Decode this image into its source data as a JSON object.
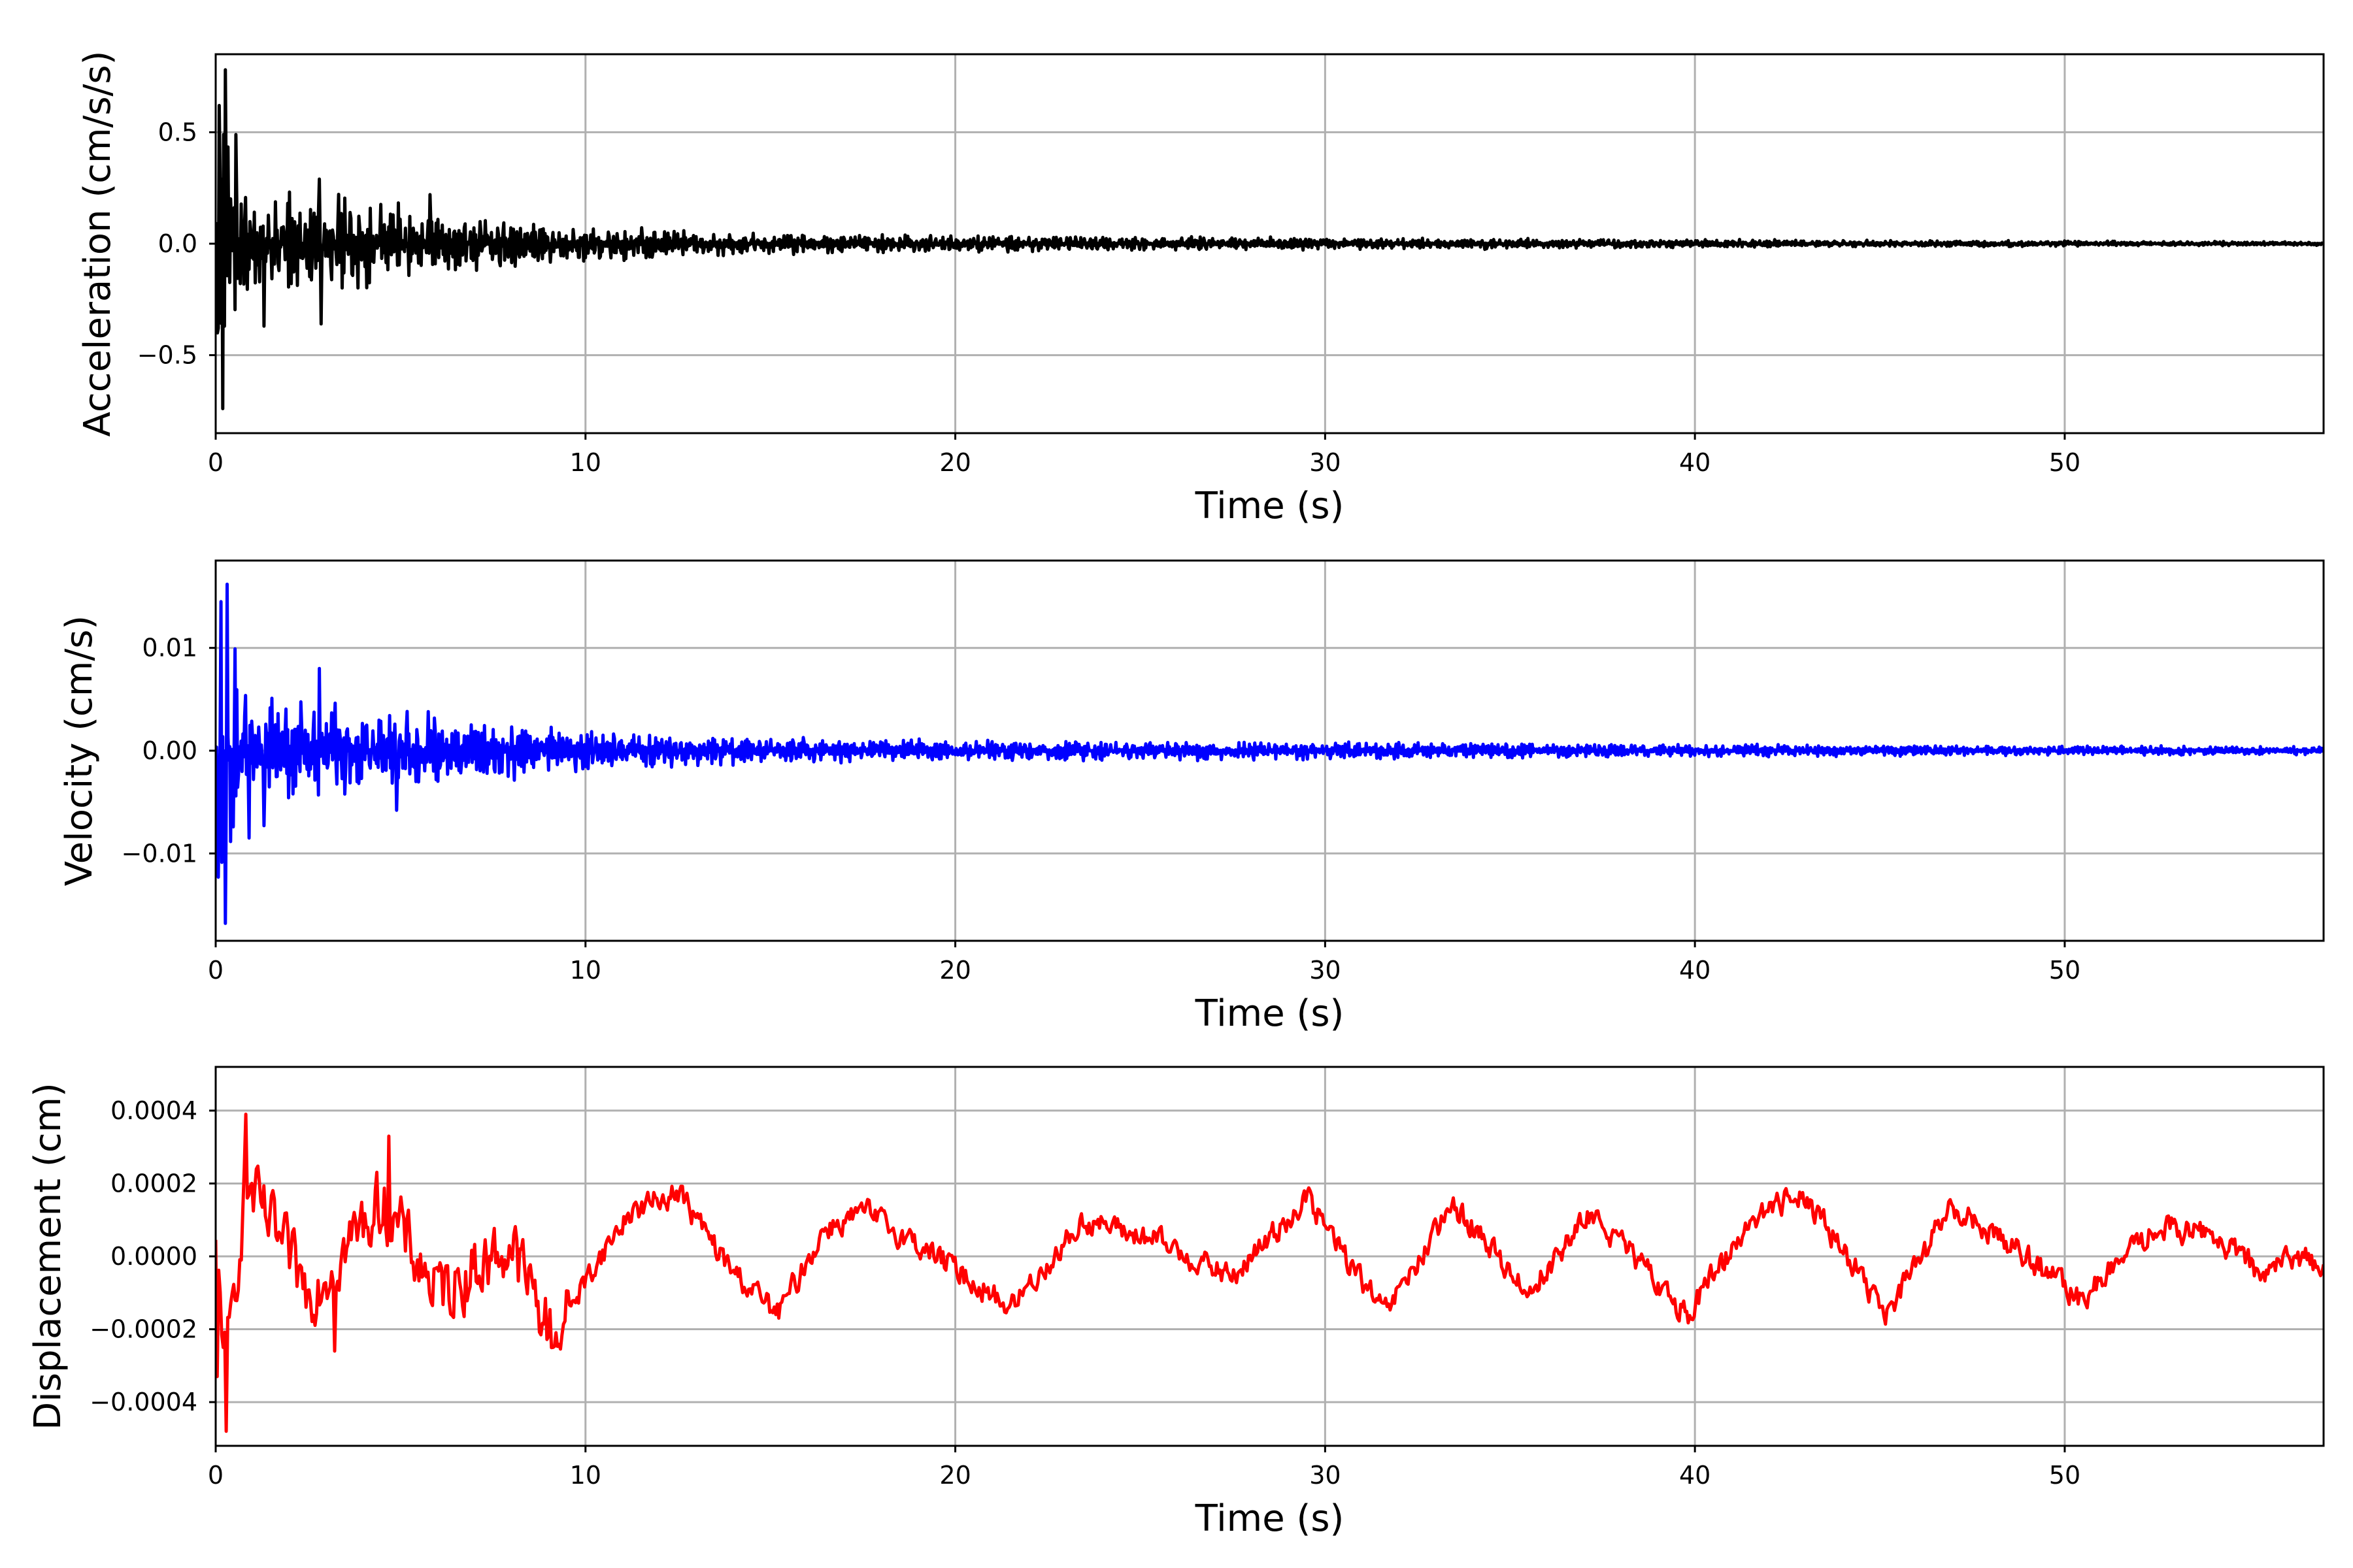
{
  "chart_data": [
    {
      "type": "line",
      "xlabel": "Time (s)",
      "ylabel": "Acceleration (cm/s/s)",
      "xlim": [
        0,
        57
      ],
      "ylim": [
        -0.85,
        0.85
      ],
      "xticks": [
        0,
        10,
        20,
        30,
        40,
        50
      ],
      "xtick_labels": [
        "0",
        "10",
        "20",
        "30",
        "40",
        "50"
      ],
      "yticks": [
        -0.5,
        0.0,
        0.5
      ],
      "ytick_labels": [
        "−0.5",
        "0.0",
        "0.5"
      ],
      "grid": true,
      "color": "#000000",
      "series": [
        {
          "amplitude_envelope": [
            {
              "t": 0,
              "a": 0.78
            },
            {
              "t": 0.3,
              "a": 0.75
            },
            {
              "t": 1,
              "a": 0.3
            },
            {
              "t": 3,
              "a": 0.28
            },
            {
              "t": 6,
              "a": 0.18
            },
            {
              "t": 10,
              "a": 0.1
            },
            {
              "t": 15,
              "a": 0.06
            },
            {
              "t": 25,
              "a": 0.04
            },
            {
              "t": 35,
              "a": 0.03
            },
            {
              "t": 45,
              "a": 0.02
            },
            {
              "t": 57,
              "a": 0.012
            }
          ],
          "peaks": [
            {
              "t": 0.27,
              "y": 0.78
            },
            {
              "t": 0.2,
              "y": -0.74
            },
            {
              "t": 0.1,
              "y": 0.62
            },
            {
              "t": 0.05,
              "y": -0.4
            },
            {
              "t": 2.8,
              "y": 0.29
            },
            {
              "t": 2.85,
              "y": -0.36
            },
            {
              "t": 1.3,
              "y": -0.37
            },
            {
              "t": 5.8,
              "y": 0.22
            }
          ]
        }
      ]
    },
    {
      "type": "line",
      "xlabel": "Time (s)",
      "ylabel": "Velocity (cm/s)",
      "xlim": [
        0,
        57
      ],
      "ylim": [
        -0.0185,
        0.0185
      ],
      "xticks": [
        0,
        10,
        20,
        30,
        40,
        50
      ],
      "xtick_labels": [
        "0",
        "10",
        "20",
        "30",
        "40",
        "50"
      ],
      "yticks": [
        -0.01,
        0.0,
        0.01
      ],
      "ytick_labels": [
        "−0.01",
        "0.00",
        "0.01"
      ],
      "grid": true,
      "color": "#0000ff",
      "series": [
        {
          "amplitude_envelope": [
            {
              "t": 0,
              "a": 0.016
            },
            {
              "t": 0.3,
              "a": 0.016
            },
            {
              "t": 1,
              "a": 0.007
            },
            {
              "t": 3,
              "a": 0.006
            },
            {
              "t": 6,
              "a": 0.0045
            },
            {
              "t": 10,
              "a": 0.0025
            },
            {
              "t": 15,
              "a": 0.0016
            },
            {
              "t": 25,
              "a": 0.0012
            },
            {
              "t": 35,
              "a": 0.001
            },
            {
              "t": 45,
              "a": 0.0007
            },
            {
              "t": 57,
              "a": 0.0005
            }
          ],
          "peaks": [
            {
              "t": 0.3,
              "y": 0.0162
            },
            {
              "t": 0.25,
              "y": -0.0168
            },
            {
              "t": 0.15,
              "y": 0.0145
            },
            {
              "t": 0.05,
              "y": -0.0075
            },
            {
              "t": 2.8,
              "y": 0.008
            },
            {
              "t": 0.9,
              "y": -0.0085
            },
            {
              "t": 1.3,
              "y": -0.0073
            },
            {
              "t": 4.9,
              "y": -0.0058
            }
          ]
        }
      ]
    },
    {
      "type": "line",
      "xlabel": "Time (s)",
      "ylabel": "Displacement (cm)",
      "xlim": [
        0,
        57
      ],
      "ylim": [
        -0.00052,
        0.00052
      ],
      "xticks": [
        0,
        10,
        20,
        30,
        40,
        50
      ],
      "xtick_labels": [
        "0",
        "10",
        "20",
        "30",
        "40",
        "50"
      ],
      "yticks": [
        -0.0004,
        -0.0002,
        0.0,
        0.0002,
        0.0004
      ],
      "ytick_labels": [
        "−0.0004",
        "−0.0002",
        "0.0000",
        "0.0002",
        "0.0004"
      ],
      "grid": true,
      "color": "#ff0000",
      "series": [
        {
          "trend": [
            {
              "t": 0,
              "y": 0.0
            },
            {
              "t": 0.3,
              "y": -0.0003
            },
            {
              "t": 0.8,
              "y": 0.0002
            },
            {
              "t": 2.5,
              "y": -0.0001
            },
            {
              "t": 4.5,
              "y": 0.00015
            },
            {
              "t": 6,
              "y": -0.0001
            },
            {
              "t": 8,
              "y": 3e-05
            },
            {
              "t": 9.1,
              "y": -0.00022
            },
            {
              "t": 10.4,
              "y": 0.0
            },
            {
              "t": 11.2,
              "y": 0.00012
            },
            {
              "t": 12.5,
              "y": 0.00018
            },
            {
              "t": 13.8,
              "y": -2e-05
            },
            {
              "t": 15.2,
              "y": -0.00016
            },
            {
              "t": 16.5,
              "y": 8e-05
            },
            {
              "t": 17.6,
              "y": 0.00012
            },
            {
              "t": 19.5,
              "y": 0.0
            },
            {
              "t": 21.5,
              "y": -0.00014
            },
            {
              "t": 23.5,
              "y": 0.0001
            },
            {
              "t": 25.5,
              "y": 4e-05
            },
            {
              "t": 27.5,
              "y": -6e-05
            },
            {
              "t": 29.5,
              "y": 0.00016
            },
            {
              "t": 31.6,
              "y": -0.00016
            },
            {
              "t": 33.5,
              "y": 0.00014
            },
            {
              "t": 35.5,
              "y": -0.0001
            },
            {
              "t": 37.2,
              "y": 0.00012
            },
            {
              "t": 39.8,
              "y": -0.00016
            },
            {
              "t": 41.5,
              "y": 0.0001
            },
            {
              "t": 42.9,
              "y": 0.00018
            },
            {
              "t": 45.2,
              "y": -0.00016
            },
            {
              "t": 46.9,
              "y": 0.00013
            },
            {
              "t": 48.5,
              "y": 4e-05
            },
            {
              "t": 50.4,
              "y": -0.00012
            },
            {
              "t": 52.5,
              "y": 8e-05
            },
            {
              "t": 54.0,
              "y": 6e-05
            },
            {
              "t": 55.2,
              "y": -4e-05
            },
            {
              "t": 56.5,
              "y": 0.0
            },
            {
              "t": 57,
              "y": -3e-05
            }
          ],
          "peaks": [
            {
              "t": 0.8,
              "y": 0.00039
            },
            {
              "t": 0.3,
              "y": -0.00048
            },
            {
              "t": 0.05,
              "y": -0.00033
            },
            {
              "t": 4.7,
              "y": 0.00033
            },
            {
              "t": 3.2,
              "y": -0.00026
            },
            {
              "t": 9.1,
              "y": -0.00025
            }
          ],
          "jitter": 3e-05
        }
      ]
    }
  ]
}
